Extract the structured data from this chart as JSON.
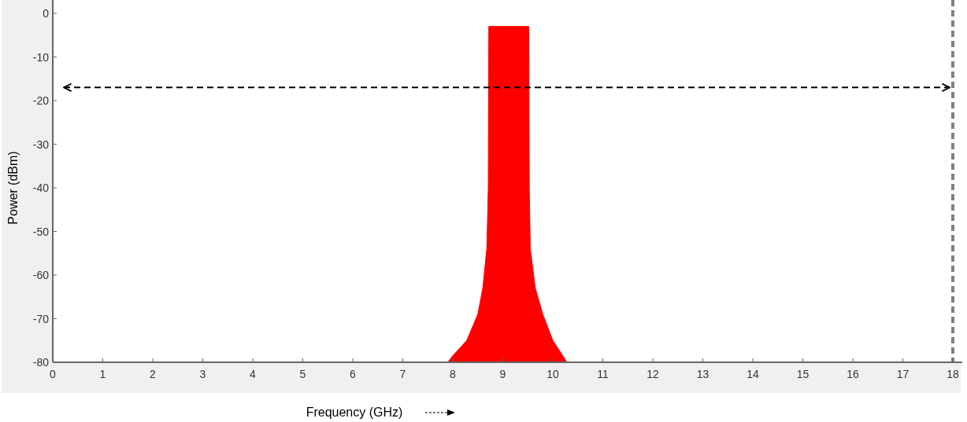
{
  "chart_data": {
    "type": "area",
    "xlabel": "Frequency (GHz)",
    "ylabel": "Power (dBm)",
    "xlim": [
      0,
      18
    ],
    "xticks": [
      0,
      1,
      2,
      3,
      4,
      5,
      6,
      7,
      8,
      9,
      10,
      11,
      12,
      13,
      14,
      15,
      16,
      17,
      18
    ],
    "ylim": [
      -80,
      0
    ],
    "yticks": [
      0,
      -10,
      -20,
      -30,
      -40,
      -50,
      -60,
      -70,
      -80
    ],
    "series": [
      {
        "color": "#ff0000",
        "x": [
          7.9,
          8.0,
          8.28,
          8.5,
          8.6,
          8.68,
          8.71,
          8.72,
          8.9,
          9.1,
          9.3,
          9.52,
          9.53,
          9.55,
          9.65,
          9.8,
          10.0,
          10.2,
          10.28
        ],
        "values": [
          -80,
          -78.5,
          -75,
          -69,
          -63,
          -54,
          -40,
          -3,
          -3,
          -3,
          -3,
          -3,
          -40,
          -54,
          -63,
          -69,
          -75,
          -78.5,
          -80
        ]
      }
    ],
    "ref_lines": [
      {
        "axis": "x",
        "value": 18,
        "color": "#808080",
        "line_style": "dashed"
      },
      {
        "axis": "y",
        "value": -17,
        "color": "#000000",
        "line_style": "dashed"
      }
    ],
    "grid": false
  }
}
